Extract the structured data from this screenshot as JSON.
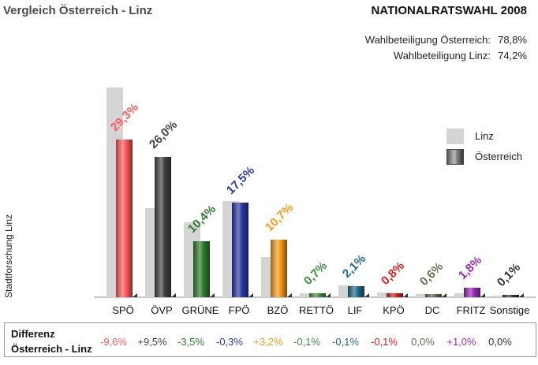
{
  "header": {
    "title_left": "Vergleich Österreich - Linz",
    "title_right": "NATIONALRATSWAHL 2008",
    "turnout": [
      {
        "label": "Wahlbeteiligung Österreich:",
        "value": "78,8%"
      },
      {
        "label": "Wahlbeteiligung Linz:",
        "value": "74,2%"
      }
    ]
  },
  "ylabel": "Stadtforschung Linz",
  "legend": [
    {
      "label": "Linz",
      "color": "#d4d4d4"
    },
    {
      "label": "Österreich",
      "color": "#666666"
    }
  ],
  "diff": {
    "label_line1": "Differenz",
    "label_line2": "Österreich - Linz",
    "values": [
      "-9,6%",
      "+9,5%",
      "-3,5%",
      "-0,3%",
      "+3,2%",
      "-0,1%",
      "-0,1%",
      "-0,1%",
      "0,0%",
      "+1,0%",
      "0,0%"
    ]
  },
  "colors": {
    "SPÖ": "#ff5a5a",
    "ÖVP": "#444444",
    "GRÜNE": "#2e7d2e",
    "FPÖ": "#2a3aa8",
    "BZÖ": "#f59a1a",
    "RETTÖ": "#3d8f3d",
    "LIF": "#1f6a88",
    "KPÖ": "#d42020",
    "DC": "#6b6b50",
    "FRITZ": "#9a2ab8",
    "Sonstige": "#333333"
  },
  "chart_data": {
    "type": "bar",
    "title": "Vergleich Österreich - Linz — Nationalratswahl 2008",
    "xlabel": "",
    "ylabel": "Stadtforschung Linz",
    "categories": [
      "SPÖ",
      "ÖVP",
      "GRÜNE",
      "FPÖ",
      "BZÖ",
      "RETTÖ",
      "LIF",
      "KPÖ",
      "DC",
      "FRITZ",
      "Sonstige"
    ],
    "series": [
      {
        "name": "Österreich",
        "values": [
          29.3,
          26.0,
          10.4,
          17.5,
          10.7,
          0.7,
          2.1,
          0.8,
          0.6,
          1.8,
          0.1
        ]
      },
      {
        "name": "Linz",
        "values": [
          38.9,
          16.5,
          13.9,
          17.8,
          7.5,
          0.8,
          2.2,
          0.9,
          0.6,
          0.8,
          0.1
        ]
      }
    ],
    "value_labels": [
      "29,3%",
      "26,0%",
      "10,4%",
      "17,5%",
      "10,7%",
      "0,7%",
      "2,1%",
      "0,8%",
      "0,6%",
      "1,8%",
      "0,1%"
    ],
    "difference_oesterreich_minus_linz": [
      -9.6,
      9.5,
      -3.5,
      -0.3,
      3.2,
      -0.1,
      -0.1,
      -0.1,
      0.0,
      1.0,
      0.0
    ],
    "turnout": {
      "Österreich": 78.8,
      "Linz": 74.2
    },
    "legend_position": "right",
    "grid": false,
    "ylim": [
      0,
      40
    ]
  }
}
